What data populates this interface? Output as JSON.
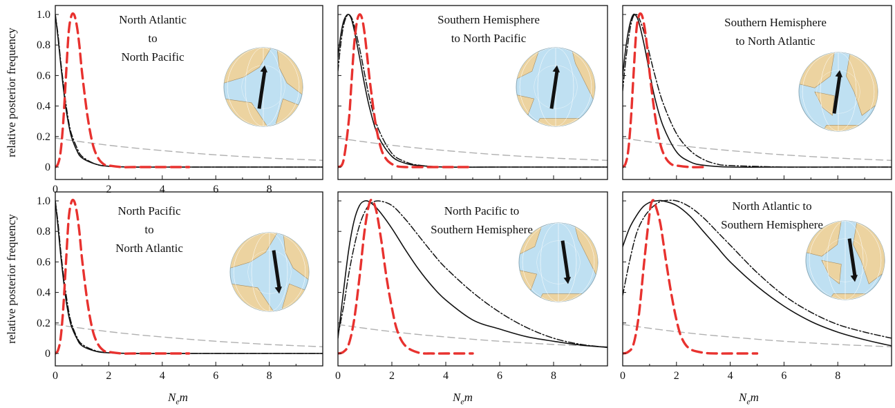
{
  "y_axis_label": "relative posterior frequency",
  "x_axis_label": {
    "main": "N",
    "sub": "e",
    "tail": "m"
  },
  "chart_data": [
    {
      "type": "line",
      "title": "North Atlantic\nto\nNorth Pacific",
      "xlim": [
        0,
        10
      ],
      "ylim": [
        0,
        1.0
      ],
      "xticks": [
        "0",
        "2",
        "4",
        "6",
        "8"
      ],
      "yticks": [
        "0",
        "0.2",
        "0.4",
        "0.6",
        "0.8",
        "1.0"
      ],
      "series": [
        {
          "style": "solid",
          "color": "#111111",
          "x": [
            0,
            0.1,
            0.2,
            0.3,
            0.4,
            0.5,
            0.6,
            0.8,
            1.0,
            1.5,
            2,
            3,
            4,
            6,
            8,
            10
          ],
          "y": [
            1.0,
            0.85,
            0.68,
            0.52,
            0.38,
            0.28,
            0.2,
            0.11,
            0.06,
            0.02,
            0.005,
            0,
            0,
            0,
            0,
            0
          ]
        },
        {
          "style": "dashdot",
          "color": "#111111",
          "x": [
            0,
            0.1,
            0.2,
            0.3,
            0.4,
            0.5,
            0.6,
            0.8,
            1.0,
            1.5,
            2,
            3,
            4,
            6,
            8,
            10
          ],
          "y": [
            1.0,
            0.87,
            0.7,
            0.55,
            0.41,
            0.3,
            0.22,
            0.13,
            0.07,
            0.02,
            0.006,
            0,
            0,
            0,
            0,
            0
          ]
        },
        {
          "style": "dashed",
          "color": "#e8322f",
          "x": [
            0,
            0.1,
            0.2,
            0.3,
            0.4,
            0.5,
            0.6,
            0.7,
            0.8,
            0.9,
            1.0,
            1.2,
            1.4,
            1.6,
            1.8,
            2.0,
            2.5,
            3,
            4,
            5
          ],
          "y": [
            0,
            0.02,
            0.1,
            0.3,
            0.6,
            0.88,
            0.99,
            1.0,
            0.93,
            0.8,
            0.62,
            0.34,
            0.15,
            0.06,
            0.02,
            0.01,
            0,
            0,
            0,
            0
          ]
        },
        {
          "style": "prior",
          "color": "#b0b0b0",
          "x": [
            0,
            1,
            2,
            3,
            4,
            5,
            6,
            7,
            8,
            9,
            10
          ],
          "y": [
            0.19,
            0.165,
            0.143,
            0.124,
            0.108,
            0.093,
            0.08,
            0.069,
            0.059,
            0.051,
            0.044
          ]
        }
      ]
    },
    {
      "type": "line",
      "title": "Southern Hemisphere\nto North Pacific",
      "xlim": [
        0,
        10
      ],
      "ylim": [
        0,
        1.0
      ],
      "xticks": [],
      "yticks": [],
      "series": [
        {
          "style": "solid",
          "color": "#111111",
          "x": [
            0,
            0.1,
            0.2,
            0.3,
            0.4,
            0.5,
            0.6,
            0.8,
            1.0,
            1.2,
            1.5,
            2,
            2.5,
            3,
            4,
            6,
            8,
            10
          ],
          "y": [
            0.72,
            0.86,
            0.95,
            0.99,
            1.0,
            0.97,
            0.9,
            0.72,
            0.53,
            0.37,
            0.2,
            0.07,
            0.025,
            0.01,
            0,
            0,
            0,
            0
          ]
        },
        {
          "style": "dashdot",
          "color": "#111111",
          "x": [
            0,
            0.1,
            0.2,
            0.3,
            0.4,
            0.5,
            0.6,
            0.8,
            1.0,
            1.2,
            1.5,
            2,
            2.5,
            3,
            4,
            6,
            8,
            10
          ],
          "y": [
            0.63,
            0.8,
            0.92,
            0.98,
            1.0,
            0.98,
            0.93,
            0.78,
            0.6,
            0.43,
            0.25,
            0.09,
            0.035,
            0.012,
            0,
            0,
            0,
            0
          ]
        },
        {
          "style": "dashed",
          "color": "#e8322f",
          "x": [
            0,
            0.2,
            0.4,
            0.5,
            0.6,
            0.7,
            0.8,
            0.9,
            1.0,
            1.1,
            1.2,
            1.4,
            1.6,
            1.8,
            2.0,
            2.2,
            2.5,
            3,
            4,
            5
          ],
          "y": [
            0,
            0.04,
            0.3,
            0.55,
            0.8,
            0.95,
            1.0,
            0.97,
            0.86,
            0.7,
            0.54,
            0.28,
            0.12,
            0.05,
            0.02,
            0.005,
            0,
            0,
            0,
            0
          ]
        },
        {
          "style": "prior",
          "color": "#b0b0b0",
          "x": [
            0,
            1,
            2,
            3,
            4,
            5,
            6,
            7,
            8,
            9,
            10
          ],
          "y": [
            0.19,
            0.165,
            0.143,
            0.124,
            0.108,
            0.093,
            0.08,
            0.069,
            0.059,
            0.051,
            0.044
          ]
        }
      ]
    },
    {
      "type": "line",
      "title": "Southern Hemisphere\nto North Atlantic",
      "xlim": [
        0,
        10
      ],
      "ylim": [
        0,
        1.0
      ],
      "xticks": [],
      "yticks": [],
      "series": [
        {
          "style": "solid",
          "color": "#111111",
          "x": [
            0,
            0.1,
            0.2,
            0.3,
            0.4,
            0.5,
            0.6,
            0.8,
            1.0,
            1.2,
            1.5,
            2,
            2.5,
            3,
            4,
            6,
            8,
            10
          ],
          "y": [
            0.6,
            0.76,
            0.88,
            0.96,
            1.0,
            0.99,
            0.95,
            0.8,
            0.62,
            0.45,
            0.27,
            0.1,
            0.035,
            0.012,
            0,
            0,
            0,
            0
          ]
        },
        {
          "style": "dashdot",
          "color": "#111111",
          "x": [
            0,
            0.1,
            0.2,
            0.3,
            0.4,
            0.5,
            0.6,
            0.8,
            1.0,
            1.2,
            1.5,
            2,
            2.5,
            3,
            3.5,
            4,
            6,
            8,
            10
          ],
          "y": [
            0.5,
            0.68,
            0.82,
            0.93,
            0.99,
            1.0,
            0.98,
            0.88,
            0.74,
            0.6,
            0.42,
            0.22,
            0.11,
            0.05,
            0.02,
            0.01,
            0,
            0,
            0
          ]
        },
        {
          "style": "dashed",
          "color": "#e8322f",
          "x": [
            0,
            0.1,
            0.2,
            0.3,
            0.4,
            0.5,
            0.6,
            0.7,
            0.8,
            0.9,
            1.0,
            1.2,
            1.4,
            1.6,
            1.8,
            2.0,
            2.5,
            3
          ],
          "y": [
            0,
            0.02,
            0.1,
            0.3,
            0.6,
            0.88,
            0.99,
            1.0,
            0.93,
            0.8,
            0.62,
            0.34,
            0.15,
            0.06,
            0.02,
            0.01,
            0,
            0
          ]
        },
        {
          "style": "prior",
          "color": "#b0b0b0",
          "x": [
            0,
            1,
            2,
            3,
            4,
            5,
            6,
            7,
            8,
            9,
            10
          ],
          "y": [
            0.19,
            0.165,
            0.143,
            0.124,
            0.108,
            0.093,
            0.08,
            0.069,
            0.059,
            0.051,
            0.044
          ]
        }
      ]
    },
    {
      "type": "line",
      "title": "North Pacific\nto\nNorth Atlantic",
      "xlim": [
        0,
        10
      ],
      "ylim": [
        0,
        1.0
      ],
      "xticks": [
        "0",
        "2",
        "4",
        "6",
        "8"
      ],
      "yticks": [
        "0",
        "0.2",
        "0.4",
        "0.6",
        "0.8",
        "1.0"
      ],
      "series": [
        {
          "style": "solid",
          "color": "#111111",
          "x": [
            0,
            0.1,
            0.2,
            0.3,
            0.4,
            0.5,
            0.6,
            0.8,
            1.0,
            1.5,
            2,
            3,
            4,
            6,
            8,
            10
          ],
          "y": [
            1.0,
            0.83,
            0.65,
            0.49,
            0.35,
            0.25,
            0.18,
            0.1,
            0.05,
            0.015,
            0.004,
            0,
            0,
            0,
            0,
            0
          ]
        },
        {
          "style": "dashdot",
          "color": "#111111",
          "x": [
            0,
            0.1,
            0.2,
            0.3,
            0.4,
            0.5,
            0.6,
            0.8,
            1.0,
            1.5,
            2,
            3,
            4,
            6,
            8,
            10
          ],
          "y": [
            1.0,
            0.86,
            0.68,
            0.52,
            0.39,
            0.28,
            0.2,
            0.11,
            0.06,
            0.018,
            0.005,
            0,
            0,
            0,
            0,
            0
          ]
        },
        {
          "style": "dashed",
          "color": "#e8322f",
          "x": [
            0,
            0.1,
            0.2,
            0.3,
            0.4,
            0.5,
            0.6,
            0.7,
            0.8,
            0.9,
            1.0,
            1.2,
            1.4,
            1.6,
            1.8,
            2.0,
            2.5,
            3,
            4,
            5
          ],
          "y": [
            0,
            0.02,
            0.1,
            0.3,
            0.6,
            0.88,
            0.99,
            1.0,
            0.93,
            0.8,
            0.62,
            0.34,
            0.15,
            0.06,
            0.02,
            0.01,
            0,
            0,
            0,
            0
          ]
        },
        {
          "style": "prior",
          "color": "#b0b0b0",
          "x": [
            0,
            1,
            2,
            3,
            4,
            5,
            6,
            7,
            8,
            9,
            10
          ],
          "y": [
            0.19,
            0.165,
            0.143,
            0.124,
            0.108,
            0.093,
            0.08,
            0.069,
            0.059,
            0.051,
            0.044
          ]
        }
      ]
    },
    {
      "type": "line",
      "title": "North Pacific to\nSouthern Hemisphere",
      "xlim": [
        0,
        10
      ],
      "ylim": [
        0,
        1.0
      ],
      "xticks": [
        "0",
        "2",
        "4",
        "6",
        "8"
      ],
      "yticks": [],
      "series": [
        {
          "style": "solid",
          "color": "#111111",
          "x": [
            0,
            0.2,
            0.4,
            0.6,
            0.8,
            1.0,
            1.2,
            1.5,
            2,
            2.5,
            3,
            3.5,
            4,
            5,
            6,
            7,
            8,
            9,
            10
          ],
          "y": [
            0.1,
            0.4,
            0.68,
            0.87,
            0.97,
            1.0,
            0.99,
            0.94,
            0.82,
            0.68,
            0.55,
            0.44,
            0.35,
            0.22,
            0.16,
            0.11,
            0.08,
            0.055,
            0.04
          ]
        },
        {
          "style": "dashdot",
          "color": "#111111",
          "x": [
            0,
            0.2,
            0.4,
            0.6,
            0.8,
            1.0,
            1.2,
            1.5,
            2,
            2.5,
            3,
            3.5,
            4,
            5,
            6,
            7,
            8,
            9,
            10
          ],
          "y": [
            0.12,
            0.3,
            0.52,
            0.7,
            0.84,
            0.93,
            0.98,
            1.0,
            0.97,
            0.88,
            0.77,
            0.66,
            0.56,
            0.4,
            0.27,
            0.17,
            0.1,
            0.06,
            0.04
          ]
        },
        {
          "style": "dashed",
          "color": "#e8322f",
          "x": [
            0,
            0.2,
            0.4,
            0.6,
            0.8,
            1.0,
            1.2,
            1.4,
            1.6,
            1.8,
            2.0,
            2.2,
            2.5,
            3,
            3.5,
            4,
            5
          ],
          "y": [
            0,
            0.01,
            0.06,
            0.22,
            0.5,
            0.82,
            1.0,
            0.95,
            0.75,
            0.5,
            0.3,
            0.15,
            0.05,
            0.005,
            0,
            0,
            0
          ]
        },
        {
          "style": "prior",
          "color": "#b0b0b0",
          "x": [
            0,
            1,
            2,
            3,
            4,
            5,
            6,
            7,
            8,
            9,
            10
          ],
          "y": [
            0.19,
            0.165,
            0.143,
            0.124,
            0.108,
            0.093,
            0.08,
            0.069,
            0.059,
            0.051,
            0.044
          ]
        }
      ]
    },
    {
      "type": "line",
      "title": "North Atlantic to\nSouthern Hemisphere",
      "xlim": [
        0,
        10
      ],
      "ylim": [
        0,
        1.0
      ],
      "xticks": [
        "0",
        "2",
        "4",
        "6",
        "8"
      ],
      "yticks": [],
      "series": [
        {
          "style": "solid",
          "color": "#111111",
          "x": [
            0,
            0.25,
            0.5,
            0.75,
            1.0,
            1.25,
            1.5,
            2,
            2.5,
            3,
            3.5,
            4,
            5,
            6,
            7,
            8,
            9,
            10
          ],
          "y": [
            0.7,
            0.82,
            0.9,
            0.96,
            0.99,
            1.0,
            1.0,
            0.97,
            0.9,
            0.8,
            0.7,
            0.6,
            0.44,
            0.31,
            0.21,
            0.14,
            0.09,
            0.05
          ]
        },
        {
          "style": "dashdot",
          "color": "#111111",
          "x": [
            0,
            0.25,
            0.5,
            0.75,
            1.0,
            1.25,
            1.5,
            2,
            2.5,
            3,
            3.5,
            4,
            5,
            6,
            7,
            8,
            9,
            10
          ],
          "y": [
            0.38,
            0.6,
            0.78,
            0.88,
            0.94,
            0.98,
            1.0,
            1.0,
            0.96,
            0.89,
            0.8,
            0.71,
            0.53,
            0.38,
            0.27,
            0.19,
            0.14,
            0.1
          ]
        },
        {
          "style": "dashed",
          "color": "#e8322f",
          "x": [
            0,
            0.2,
            0.4,
            0.6,
            0.8,
            1.0,
            1.1,
            1.2,
            1.4,
            1.6,
            1.8,
            2.0,
            2.2,
            2.5,
            3,
            3.5,
            4,
            5
          ],
          "y": [
            0,
            0.01,
            0.06,
            0.25,
            0.6,
            0.92,
            1.0,
            0.98,
            0.85,
            0.62,
            0.4,
            0.22,
            0.1,
            0.03,
            0.005,
            0,
            0,
            0
          ]
        },
        {
          "style": "prior",
          "color": "#b0b0b0",
          "x": [
            0,
            1,
            2,
            3,
            4,
            5,
            6,
            7,
            8,
            9,
            10
          ],
          "y": [
            0.19,
            0.165,
            0.143,
            0.124,
            0.108,
            0.093,
            0.08,
            0.069,
            0.059,
            0.051,
            0.044
          ]
        }
      ]
    }
  ],
  "globes": [
    {
      "name": "arctic-globe",
      "arrow_dir": "up"
    },
    {
      "name": "pacific-globe",
      "arrow_dir": "up"
    },
    {
      "name": "atlantic-globe",
      "arrow_dir": "up"
    },
    {
      "name": "arctic-globe",
      "arrow_dir": "down"
    },
    {
      "name": "pacific-globe",
      "arrow_dir": "down"
    },
    {
      "name": "atlantic-globe",
      "arrow_dir": "down"
    }
  ],
  "colors": {
    "ocean": "#bfe0f2",
    "land": "#ecd3a0",
    "arrow": "#111111",
    "posterior_red": "#e8322f",
    "prior_grey": "#b0b0b0"
  }
}
